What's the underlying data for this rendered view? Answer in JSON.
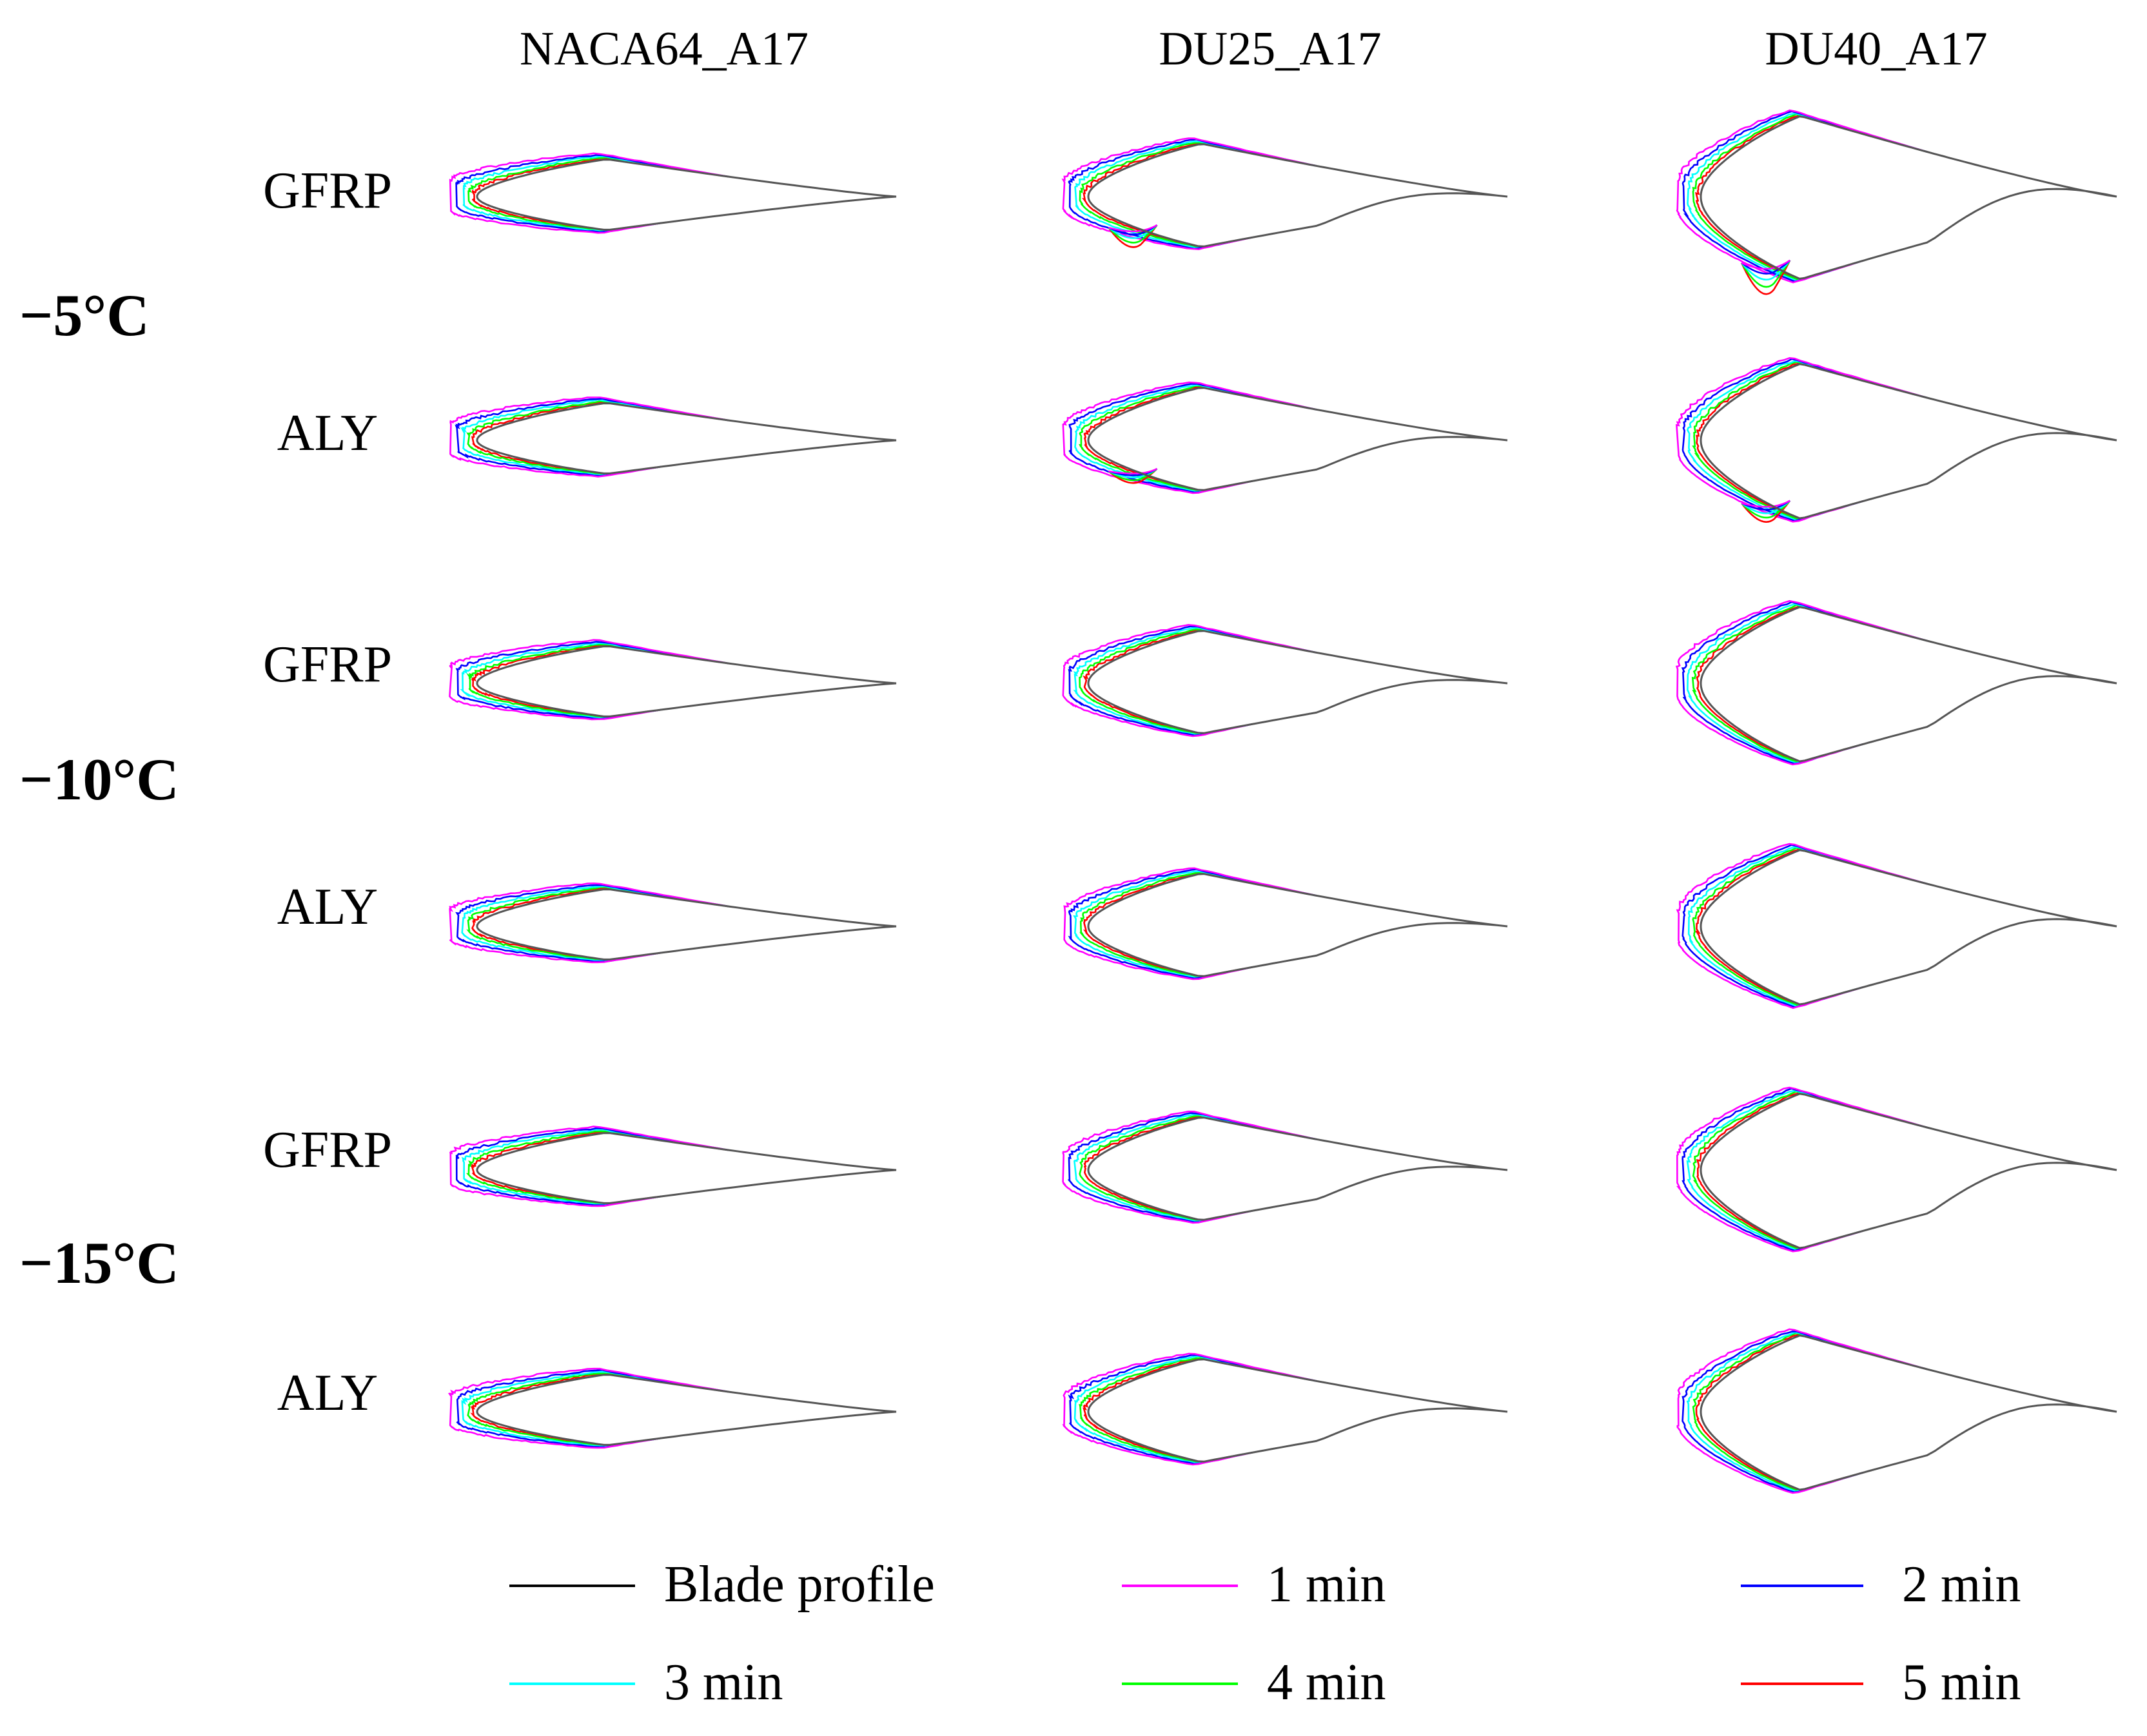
{
  "columns": [
    "NACA64_A17",
    "DU25_A17",
    "DU40_A17"
  ],
  "temperatures": [
    "−5°C",
    "−10°C",
    "−15°C"
  ],
  "materials": [
    "GFRP",
    "ALY"
  ],
  "legend": [
    {
      "label": "Blade profile",
      "color": "#000000"
    },
    {
      "label": "1 min",
      "color": "#ff00ff"
    },
    {
      "label": "2 min",
      "color": "#0000ff"
    },
    {
      "label": "3 min",
      "color": "#00ffff"
    },
    {
      "label": "4 min",
      "color": "#00ff00"
    },
    {
      "label": "5 min",
      "color": "#ff0000"
    }
  ],
  "profile_color": "#555555"
}
